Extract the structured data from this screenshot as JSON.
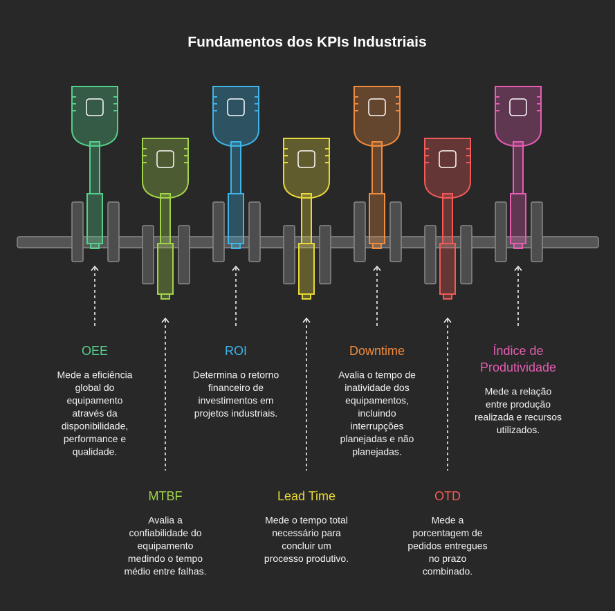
{
  "title": "Fundamentos dos KPIs Industriais",
  "items": [
    {
      "label_lines": [
        "OEE"
      ],
      "color": "#55cf8c",
      "description_lines": [
        "Mede a eficiência",
        "global do",
        "equipamento",
        "através da",
        "disponibilidade,",
        "performance e",
        "qualidade."
      ]
    },
    {
      "label_lines": [
        "MTBF"
      ],
      "color": "#a2d44a",
      "description_lines": [
        "Avalia a",
        "confiabilidade do",
        "equipamento",
        "medindo o tempo",
        "médio entre falhas."
      ]
    },
    {
      "label_lines": [
        "ROI"
      ],
      "color": "#3db5e8",
      "description_lines": [
        "Determina o retorno",
        "financeiro de",
        "investimentos em",
        "projetos industriais."
      ]
    },
    {
      "label_lines": [
        "Lead Time"
      ],
      "color": "#e8d83a",
      "description_lines": [
        "Mede o tempo total",
        "necessário para",
        "concluir um",
        "processo produtivo."
      ]
    },
    {
      "label_lines": [
        "Downtime"
      ],
      "color": "#f18b3d",
      "description_lines": [
        "Avalia o tempo de",
        "inatividade dos",
        "equipamentos,",
        "incluindo",
        "interrupções",
        "planejadas e não",
        "planejadas."
      ]
    },
    {
      "label_lines": [
        "OTD"
      ],
      "color": "#f25b57",
      "description_lines": [
        "Mede a",
        "porcentagem de",
        "pedidos entregues",
        "no prazo",
        "combinado."
      ]
    },
    {
      "label_lines": [
        "Índice de",
        "Produtividade"
      ],
      "color": "#e65db3",
      "description_lines": [
        "Mede a relação",
        "entre produção",
        "realizada e recursos",
        "utilizados."
      ]
    }
  ]
}
